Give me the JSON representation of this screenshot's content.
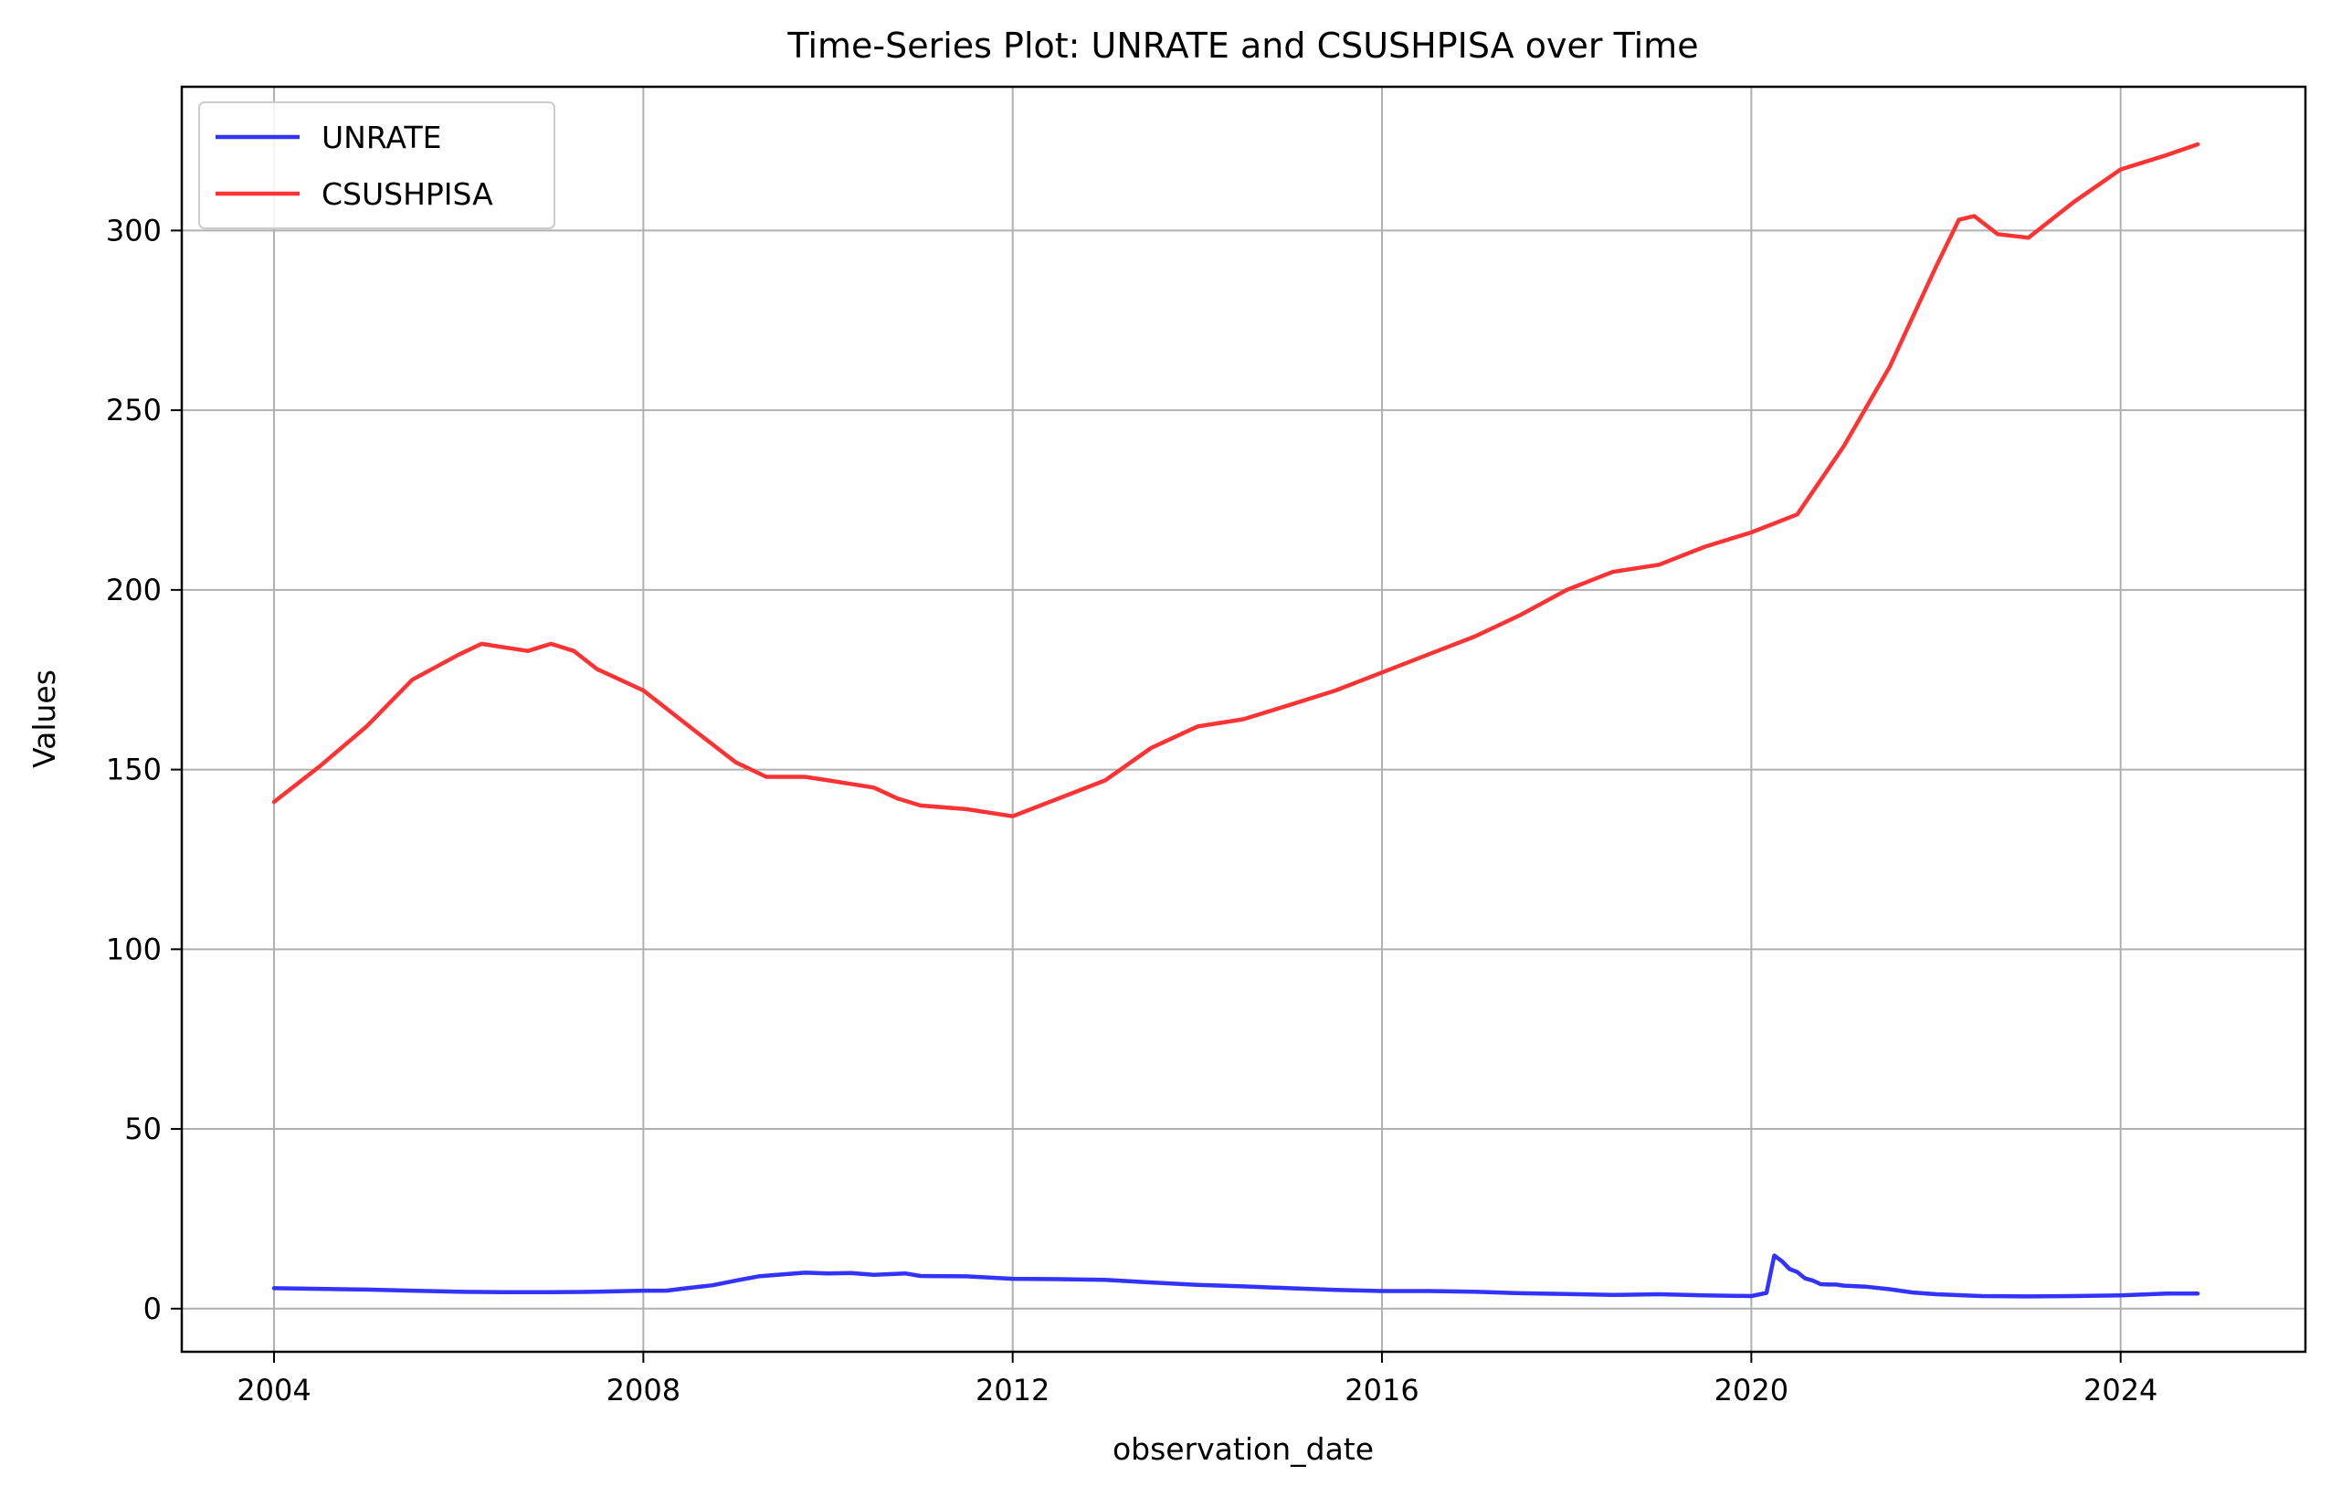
{
  "chart_data": {
    "type": "line",
    "title": "Time-Series Plot: UNRATE and CSUSHPISA over Time",
    "xlabel": "observation_date",
    "ylabel": "Values",
    "xlim": [
      "2003-01-01",
      "2026-01-01"
    ],
    "ylim": [
      -12,
      340
    ],
    "xticks": [
      "2004",
      "2008",
      "2012",
      "2016",
      "2020",
      "2024"
    ],
    "yticks": [
      0,
      50,
      100,
      150,
      200,
      250,
      300
    ],
    "grid": true,
    "legend_position": "top-left",
    "series": [
      {
        "name": "UNRATE",
        "color": "#3333ff",
        "x": [
          "2004-01-01",
          "2004-07-01",
          "2005-01-01",
          "2005-07-01",
          "2006-01-01",
          "2006-07-01",
          "2007-01-01",
          "2007-07-01",
          "2008-01-01",
          "2008-04-01",
          "2008-07-01",
          "2008-10-01",
          "2009-01-01",
          "2009-04-01",
          "2009-07-01",
          "2009-10-01",
          "2010-01-01",
          "2010-04-01",
          "2010-07-01",
          "2010-11-01",
          "2011-01-01",
          "2011-07-01",
          "2012-01-01",
          "2012-07-01",
          "2013-01-01",
          "2013-07-01",
          "2014-01-01",
          "2014-07-01",
          "2015-01-01",
          "2015-07-01",
          "2016-01-01",
          "2016-07-01",
          "2017-01-01",
          "2017-07-01",
          "2018-01-01",
          "2018-07-01",
          "2019-01-01",
          "2019-07-01",
          "2020-01-01",
          "2020-03-01",
          "2020-04-01",
          "2020-05-01",
          "2020-06-01",
          "2020-07-01",
          "2020-08-01",
          "2020-09-01",
          "2020-10-01",
          "2020-11-01",
          "2020-12-01",
          "2021-01-01",
          "2021-04-01",
          "2021-07-01",
          "2021-10-01",
          "2022-01-01",
          "2022-07-01",
          "2023-01-01",
          "2023-07-01",
          "2024-01-01",
          "2024-07-01",
          "2024-11-01"
        ],
        "y": [
          5.7,
          5.5,
          5.3,
          5.0,
          4.7,
          4.6,
          4.6,
          4.7,
          5.0,
          5.0,
          5.8,
          6.5,
          7.8,
          9.0,
          9.5,
          10.0,
          9.8,
          9.9,
          9.4,
          9.8,
          9.1,
          9.0,
          8.3,
          8.2,
          8.0,
          7.3,
          6.6,
          6.2,
          5.7,
          5.2,
          4.9,
          4.9,
          4.7,
          4.3,
          4.1,
          3.8,
          4.0,
          3.7,
          3.5,
          4.4,
          14.8,
          13.2,
          11.0,
          10.2,
          8.4,
          7.8,
          6.8,
          6.7,
          6.7,
          6.4,
          6.1,
          5.4,
          4.5,
          4.0,
          3.5,
          3.4,
          3.5,
          3.7,
          4.2,
          4.2
        ]
      },
      {
        "name": "CSUSHPISA",
        "color": "#ff3333",
        "x": [
          "2004-01-01",
          "2004-07-01",
          "2005-01-01",
          "2005-07-01",
          "2006-01-01",
          "2006-04-01",
          "2006-07-01",
          "2006-10-01",
          "2007-01-01",
          "2007-04-01",
          "2007-07-01",
          "2007-10-01",
          "2008-01-01",
          "2008-07-01",
          "2009-01-01",
          "2009-05-01",
          "2009-07-01",
          "2009-10-01",
          "2010-01-01",
          "2010-04-01",
          "2010-07-01",
          "2010-10-01",
          "2011-01-01",
          "2011-07-01",
          "2012-01-01",
          "2012-07-01",
          "2013-01-01",
          "2013-07-01",
          "2014-01-01",
          "2014-07-01",
          "2015-01-01",
          "2015-07-01",
          "2016-01-01",
          "2016-07-01",
          "2017-01-01",
          "2017-07-01",
          "2018-01-01",
          "2018-07-01",
          "2019-01-01",
          "2019-07-01",
          "2020-01-01",
          "2020-07-01",
          "2021-01-01",
          "2021-07-01",
          "2022-01-01",
          "2022-04-01",
          "2022-06-01",
          "2022-09-01",
          "2023-01-01",
          "2023-07-01",
          "2024-01-01",
          "2024-07-01",
          "2024-11-01"
        ],
        "y": [
          141,
          151,
          162,
          175,
          182,
          185,
          184,
          183,
          185,
          183,
          178,
          175,
          172,
          162,
          152,
          148,
          148,
          148,
          147,
          146,
          145,
          142,
          140,
          139,
          137,
          142,
          147,
          156,
          162,
          164,
          168,
          172,
          177,
          182,
          187,
          193,
          200,
          205,
          207,
          212,
          216,
          221,
          240,
          262,
          290,
          303,
          304,
          299,
          298,
          308,
          317,
          321,
          324
        ]
      }
    ]
  }
}
